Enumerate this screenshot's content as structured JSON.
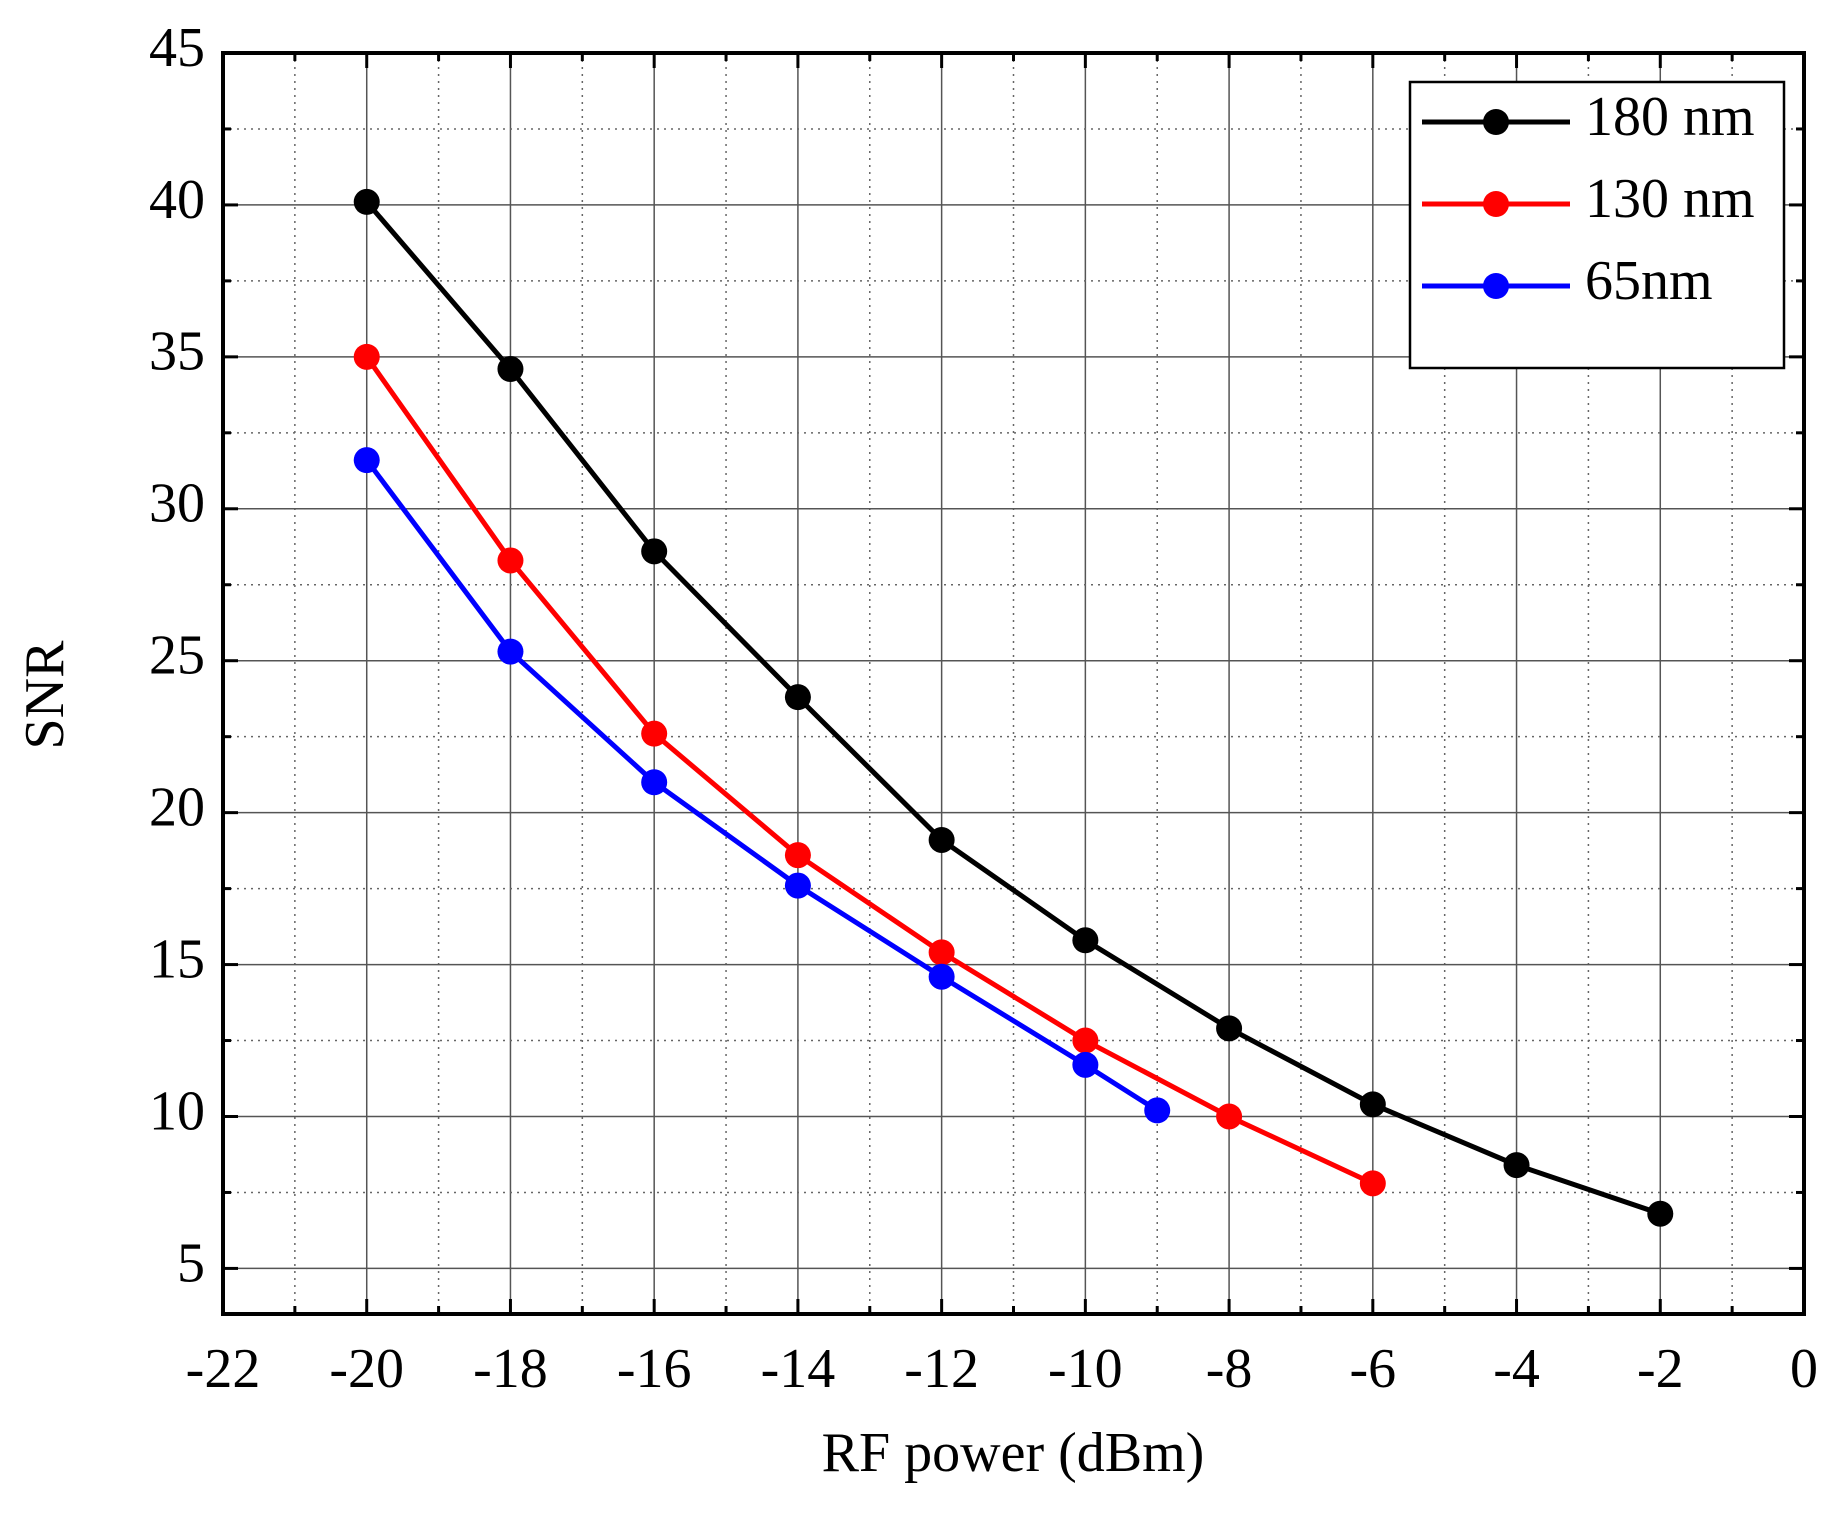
{
  "chart_data": {
    "type": "line",
    "x_label": "RF power (dBm)",
    "y_label": "SNR",
    "xlim": [
      -22,
      0
    ],
    "xticks": [
      -22,
      -20,
      -18,
      -16,
      -14,
      -12,
      -10,
      -8,
      -6,
      -4,
      -2,
      0
    ],
    "ylim": [
      3.5,
      45
    ],
    "yticks": [
      5,
      10,
      15,
      20,
      25,
      30,
      35,
      40,
      45
    ],
    "grid": true,
    "legend": "upper right",
    "series": [
      {
        "name": "180 nm",
        "color": "#000000",
        "x": [
          -20,
          -18,
          -16,
          -14,
          -12,
          -10,
          -8,
          -6,
          -4,
          -2
        ],
        "values": [
          40.1,
          34.6,
          28.6,
          23.8,
          19.1,
          15.8,
          12.9,
          10.4,
          8.4,
          6.8
        ]
      },
      {
        "name": "130 nm",
        "color": "#ff0000",
        "x": [
          -20,
          -18,
          -16,
          -14,
          -12,
          -10,
          -8,
          -6
        ],
        "values": [
          35.0,
          28.3,
          22.6,
          18.6,
          15.4,
          12.5,
          10.0,
          7.8
        ]
      },
      {
        "name": "65nm",
        "color": "#0000ff",
        "x": [
          -20,
          -18,
          -16,
          -14,
          -12,
          -10,
          -9
        ],
        "values": [
          31.6,
          25.3,
          21.0,
          17.6,
          14.6,
          11.7,
          10.2
        ]
      }
    ]
  }
}
